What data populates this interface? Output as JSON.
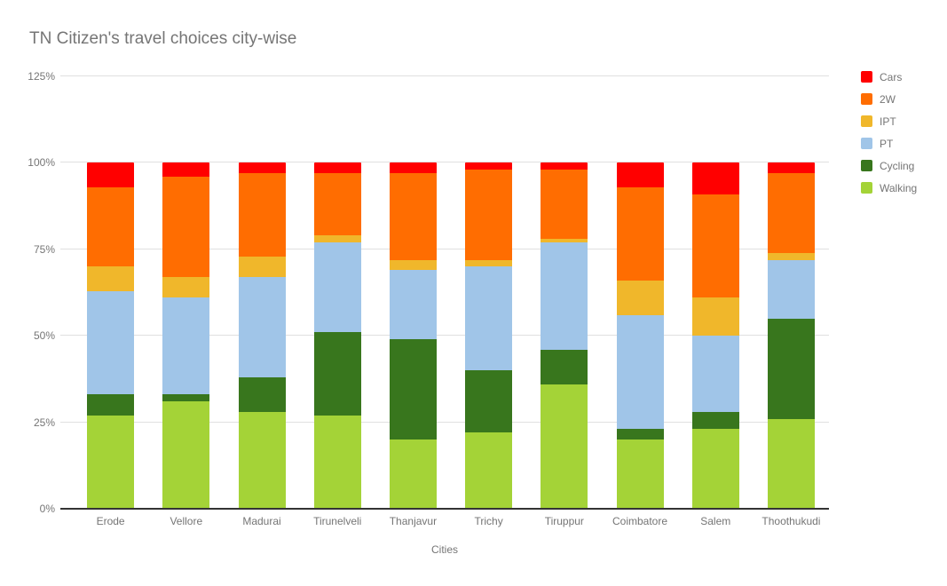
{
  "title": "TN Citizen's travel choices city-wise",
  "colors": {
    "background": "#FFFFFF",
    "grid": "#E0E0E0",
    "axis_line": "#333333",
    "text": "#757575"
  },
  "chart_data": {
    "type": "bar",
    "stacked": true,
    "title": "TN Citizen's travel choices city-wise",
    "xlabel": "Cities",
    "ylabel": "",
    "ylim": [
      0,
      125
    ],
    "yticks": [
      0,
      25,
      50,
      75,
      100,
      125
    ],
    "ytick_labels": [
      "0%",
      "25%",
      "50%",
      "75%",
      "100%",
      "125%"
    ],
    "grid": true,
    "legend_position": "right",
    "categories": [
      "Erode",
      "Vellore",
      "Madurai",
      "Tirunelveli",
      "Thanjavur",
      "Trichy",
      "Tiruppur",
      "Coimbatore",
      "Salem",
      "Thoothukudi"
    ],
    "series": [
      {
        "name": "Cars",
        "color": "#FF0000",
        "values": [
          7,
          4,
          3,
          3,
          3,
          2,
          2,
          7,
          9,
          3
        ]
      },
      {
        "name": "2W",
        "color": "#FF6D01",
        "values": [
          23,
          29,
          24,
          18,
          25,
          26,
          20,
          27,
          30,
          23
        ]
      },
      {
        "name": "IPT",
        "color": "#F0B72B",
        "values": [
          7,
          6,
          6,
          2,
          3,
          2,
          1,
          10,
          11,
          2
        ]
      },
      {
        "name": "PT",
        "color": "#A0C5E8",
        "values": [
          30,
          28,
          29,
          26,
          20,
          30,
          31,
          33,
          22,
          17
        ]
      },
      {
        "name": "Cycling",
        "color": "#38761D",
        "values": [
          6,
          2,
          10,
          24,
          29,
          18,
          10,
          3,
          5,
          29
        ]
      },
      {
        "name": "Walking",
        "color": "#A4D337",
        "values": [
          27,
          31,
          28,
          27,
          20,
          22,
          36,
          20,
          23,
          26
        ]
      }
    ]
  }
}
